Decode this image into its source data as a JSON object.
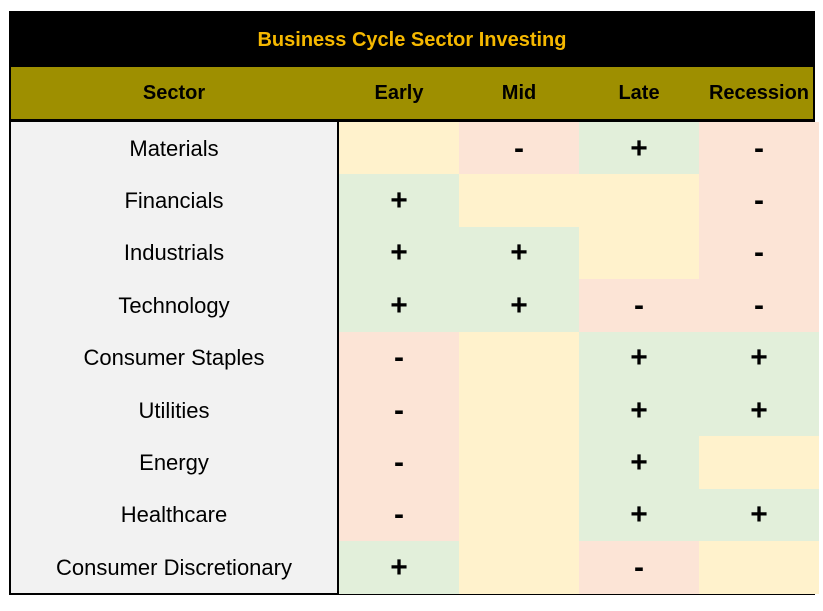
{
  "colors": {
    "title_bg": "#000000",
    "title_text": "#f5b800",
    "header_bg": "#9e8f00",
    "sector_bg": "#f2f2f2",
    "positive": "#e2efda",
    "negative": "#fce4d6",
    "neutral": "#fff2cc"
  },
  "chart_data": {
    "type": "table",
    "title": "Business Cycle Sector Investing",
    "columns": [
      "Sector",
      "Early",
      "Mid",
      "Late",
      "Recession"
    ],
    "rows": [
      {
        "sector": "Materials",
        "values": [
          "",
          "-",
          "+",
          "-"
        ]
      },
      {
        "sector": "Financials",
        "values": [
          "+",
          "",
          "",
          "-"
        ]
      },
      {
        "sector": "Industrials",
        "values": [
          "+",
          "+",
          "",
          "-"
        ]
      },
      {
        "sector": "Technology",
        "values": [
          "+",
          "+",
          "-",
          "-"
        ]
      },
      {
        "sector": "Consumer Staples",
        "values": [
          "-",
          "",
          "+",
          "+"
        ]
      },
      {
        "sector": "Utilities",
        "values": [
          "-",
          "",
          "+",
          "+"
        ]
      },
      {
        "sector": "Energy",
        "values": [
          "-",
          "",
          "+",
          ""
        ]
      },
      {
        "sector": "Healthcare",
        "values": [
          "-",
          "",
          "+",
          "+"
        ]
      },
      {
        "sector": "Consumer Discretionary",
        "values": [
          "+",
          "",
          "-",
          ""
        ]
      }
    ]
  }
}
